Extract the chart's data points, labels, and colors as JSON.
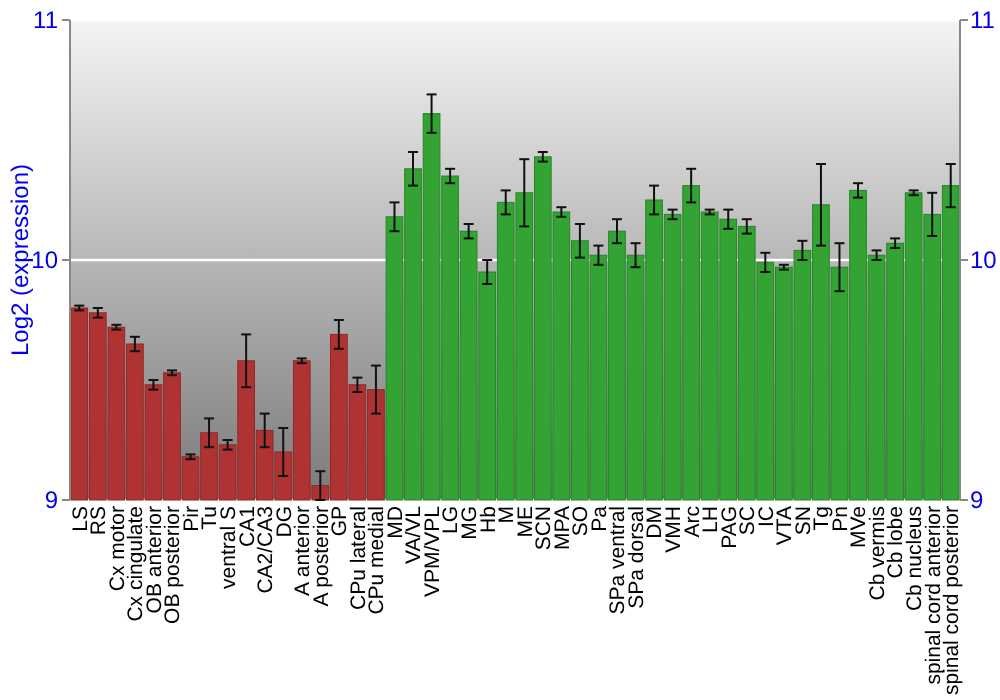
{
  "chart_data": {
    "type": "bar",
    "ylabel": "Log2 (expression)",
    "categories": [
      "LS",
      "RS",
      "Cx motor",
      "Cx cingulate",
      "OB anterior",
      "OB posterior",
      "Pir",
      "Tu",
      "ventral S",
      "CA1",
      "CA2/CA3",
      "DG",
      "A anterior",
      "A posterior",
      "GP",
      "CPu lateral",
      "CPu medial",
      "MD",
      "VA/VL",
      "VPM/VPL",
      "LG",
      "MG",
      "Hb",
      "M",
      "ME",
      "SCN",
      "MPA",
      "SO",
      "Pa",
      "SPa ventral",
      "SPa dorsal",
      "DM",
      "VMH",
      "Arc",
      "LH",
      "PAG",
      "SC",
      "IC",
      "VTA",
      "SN",
      "Tg",
      "Pn",
      "MVe",
      "Cb vermis",
      "Cb lobe",
      "Cb nucleus",
      "spinal cord anterior",
      "spinal cord posterior"
    ],
    "values": [
      9.8,
      9.78,
      9.72,
      9.65,
      9.48,
      9.53,
      9.18,
      9.28,
      9.23,
      9.58,
      9.29,
      9.2,
      9.58,
      9.06,
      9.69,
      9.48,
      9.46,
      10.18,
      10.38,
      10.61,
      10.35,
      10.12,
      9.95,
      10.24,
      10.28,
      10.43,
      10.2,
      10.08,
      10.02,
      10.12,
      10.02,
      10.25,
      10.19,
      10.31,
      10.2,
      10.17,
      10.14,
      9.99,
      9.97,
      10.04,
      10.23,
      9.97,
      10.29,
      10.02,
      10.07,
      10.28,
      10.19,
      10.31
    ],
    "errors": [
      0.01,
      0.02,
      0.01,
      0.03,
      0.02,
      0.01,
      0.01,
      0.06,
      0.02,
      0.11,
      0.07,
      0.1,
      0.01,
      0.06,
      0.06,
      0.03,
      0.1,
      0.06,
      0.07,
      0.08,
      0.03,
      0.03,
      0.05,
      0.05,
      0.14,
      0.02,
      0.02,
      0.07,
      0.04,
      0.05,
      0.05,
      0.06,
      0.02,
      0.07,
      0.01,
      0.04,
      0.03,
      0.04,
      0.01,
      0.04,
      0.17,
      0.1,
      0.03,
      0.02,
      0.02,
      0.01,
      0.09,
      0.09
    ],
    "colors": [
      "#b03333",
      "#b03333",
      "#b03333",
      "#b03333",
      "#b03333",
      "#b03333",
      "#b03333",
      "#b03333",
      "#b03333",
      "#b03333",
      "#b03333",
      "#b03333",
      "#b03333",
      "#b03333",
      "#b03333",
      "#b03333",
      "#b03333",
      "#33a333",
      "#33a333",
      "#33a333",
      "#33a333",
      "#33a333",
      "#33a333",
      "#33a333",
      "#33a333",
      "#33a333",
      "#33a333",
      "#33a333",
      "#33a333",
      "#33a333",
      "#33a333",
      "#33a333",
      "#33a333",
      "#33a333",
      "#33a333",
      "#33a333",
      "#33a333",
      "#33a333",
      "#33a333",
      "#33a333",
      "#33a333",
      "#33a333",
      "#33a333",
      "#33a333",
      "#33a333",
      "#33a333",
      "#33a333",
      "#33a333"
    ],
    "ylim": [
      9,
      11
    ],
    "yticks": [
      9,
      10,
      11
    ],
    "y2lim": [
      9,
      11
    ],
    "y2ticks": [
      9,
      10,
      11
    ],
    "grid": "y"
  }
}
